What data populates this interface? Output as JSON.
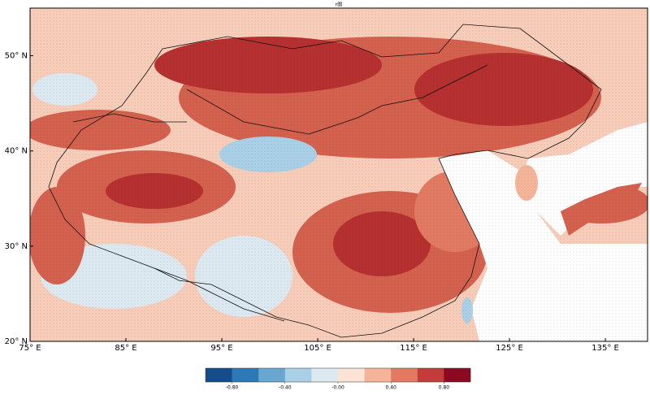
{
  "map": {
    "title": "r图",
    "xlim": [
      75,
      139.4
    ],
    "ylim": [
      20,
      55
    ],
    "lon_ticks": [
      {
        "value": 75,
        "label": "75° E"
      },
      {
        "value": 85,
        "label": "85° E"
      },
      {
        "value": 95,
        "label": "95° E"
      },
      {
        "value": 105,
        "label": "105° E"
      },
      {
        "value": 115,
        "label": "115° E"
      },
      {
        "value": 125,
        "label": "125° E"
      },
      {
        "value": 135,
        "label": "135° E"
      }
    ],
    "lat_ticks": [
      {
        "value": 20,
        "label": "20° N"
      },
      {
        "value": 30,
        "label": "30° N"
      },
      {
        "value": 40,
        "label": "40° N"
      },
      {
        "value": 50,
        "label": "50° N"
      }
    ]
  },
  "colorbar": {
    "range": [
      -1,
      1
    ],
    "colors": [
      "#154d8a",
      "#2e79b5",
      "#68a7d0",
      "#a9d0e6",
      "#dde9f1",
      "#fbe3d6",
      "#f5b49a",
      "#e27a62",
      "#c33c3c",
      "#8b0a22"
    ],
    "ticks": [
      {
        "value": -0.8,
        "label": "-0.80"
      },
      {
        "value": -0.4,
        "label": "-0.40"
      },
      {
        "value": 0,
        "label": "-0.00"
      },
      {
        "value": 0.4,
        "label": "0.40"
      },
      {
        "value": 0.8,
        "label": "0.80"
      }
    ]
  }
}
